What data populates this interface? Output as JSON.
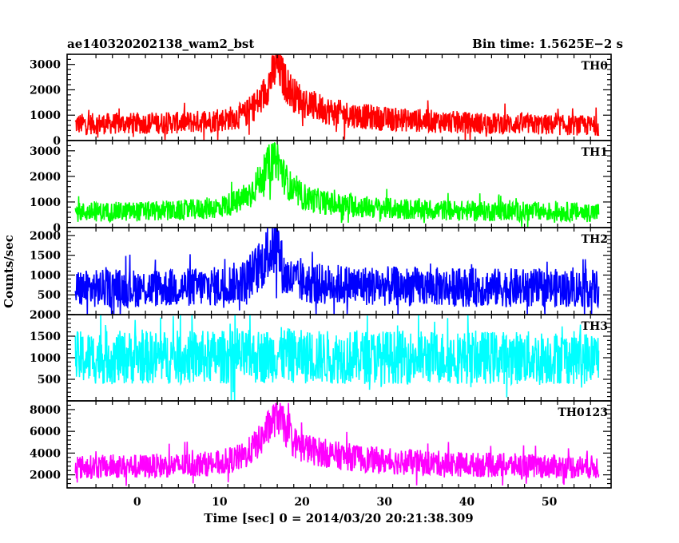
{
  "header": {
    "title": "ae140320202138_wam2_bst",
    "bin_time": "Bin time: 1.5625E−2 s"
  },
  "chart_data": {
    "type": "line",
    "title": "ae140320202138_wam2_bst",
    "subtitle": "Bin time: 1.5625E−2 s",
    "xlabel": "Time [sec] 0 = 2014/03/20 20:21:38.309",
    "ylabel": "Counts/sec",
    "xlim": [
      -8.5,
      57.5
    ],
    "x_ticks": [
      0,
      10,
      20,
      30,
      40,
      50
    ],
    "x_tick_labels": [
      "0",
      "10",
      "20",
      "30",
      "40",
      "50"
    ],
    "data_span": [
      -7.5,
      56
    ],
    "grid": false,
    "panels": [
      {
        "name": "TH0",
        "color": "#ff0000",
        "ylim": [
          0,
          3400
        ],
        "y_ticks": [
          0,
          1000,
          2000,
          3000
        ],
        "y_tick_labels": [
          "0",
          "1000",
          "2000",
          "3000"
        ],
        "profile": [
          [
            -7.5,
            650
          ],
          [
            5,
            700
          ],
          [
            10,
            800
          ],
          [
            13,
            1000
          ],
          [
            15,
            1600
          ],
          [
            16.3,
            2500
          ],
          [
            17,
            3000
          ],
          [
            17.8,
            2400
          ],
          [
            19,
            1800
          ],
          [
            21,
            1400
          ],
          [
            24,
            1100
          ],
          [
            30,
            850
          ],
          [
            40,
            700
          ],
          [
            50,
            620
          ],
          [
            56,
            580
          ]
        ],
        "noise": 420,
        "peak_max": 3400
      },
      {
        "name": "TH1",
        "color": "#00ff00",
        "ylim": [
          0,
          3400
        ],
        "y_ticks": [
          0,
          1000,
          2000,
          3000
        ],
        "y_tick_labels": [
          "0",
          "1000",
          "2000",
          "3000"
        ],
        "profile": [
          [
            -7.5,
            600
          ],
          [
            5,
            650
          ],
          [
            10,
            800
          ],
          [
            13,
            1100
          ],
          [
            15,
            1900
          ],
          [
            16,
            2500
          ],
          [
            17,
            2700
          ],
          [
            17.8,
            2000
          ],
          [
            19,
            1400
          ],
          [
            21,
            1100
          ],
          [
            24,
            900
          ],
          [
            30,
            750
          ],
          [
            40,
            650
          ],
          [
            50,
            620
          ],
          [
            56,
            600
          ]
        ],
        "noise": 380,
        "peak_max": 3300
      },
      {
        "name": "TH2",
        "color": "#0000ff",
        "ylim": [
          0,
          2200
        ],
        "y_ticks": [
          500,
          1000,
          1500,
          2000
        ],
        "y_tick_labels": [
          "500",
          "1000",
          "1500",
          "2000"
        ],
        "profile": [
          [
            -7.5,
            650
          ],
          [
            5,
            680
          ],
          [
            10,
            720
          ],
          [
            13,
            850
          ],
          [
            15,
            1250
          ],
          [
            16,
            1600
          ],
          [
            17,
            1800
          ],
          [
            17.8,
            1000
          ],
          [
            19,
            850
          ],
          [
            21,
            780
          ],
          [
            30,
            720
          ],
          [
            40,
            690
          ],
          [
            56,
            660
          ]
        ],
        "noise": 480,
        "peak_max": 2200
      },
      {
        "name": "TH3",
        "color": "#00ffff",
        "ylim": [
          0,
          2000
        ],
        "y_ticks": [
          500,
          1000,
          1500,
          2000
        ],
        "y_tick_labels": [
          "500",
          "1000",
          "1500",
          "2000"
        ],
        "profile": [
          [
            -7.5,
            1000
          ],
          [
            15,
            1020
          ],
          [
            17,
            1080
          ],
          [
            20,
            1020
          ],
          [
            56,
            1000
          ]
        ],
        "noise": 620,
        "peak_max": 2000
      },
      {
        "name": "TH0123",
        "color": "#ff00ff",
        "ylim": [
          800,
          8800
        ],
        "y_ticks": [
          2000,
          4000,
          6000,
          8000
        ],
        "y_tick_labels": [
          "2000",
          "4000",
          "6000",
          "8000"
        ],
        "profile": [
          [
            -7.5,
            2700
          ],
          [
            5,
            2850
          ],
          [
            10,
            3100
          ],
          [
            13,
            3700
          ],
          [
            15,
            5200
          ],
          [
            16.3,
            6800
          ],
          [
            17,
            7600
          ],
          [
            17.8,
            6500
          ],
          [
            19,
            5000
          ],
          [
            21,
            4300
          ],
          [
            24,
            3800
          ],
          [
            30,
            3250
          ],
          [
            40,
            2950
          ],
          [
            50,
            2780
          ],
          [
            56,
            2700
          ]
        ],
        "noise": 1100,
        "peak_max": 8600
      }
    ]
  }
}
